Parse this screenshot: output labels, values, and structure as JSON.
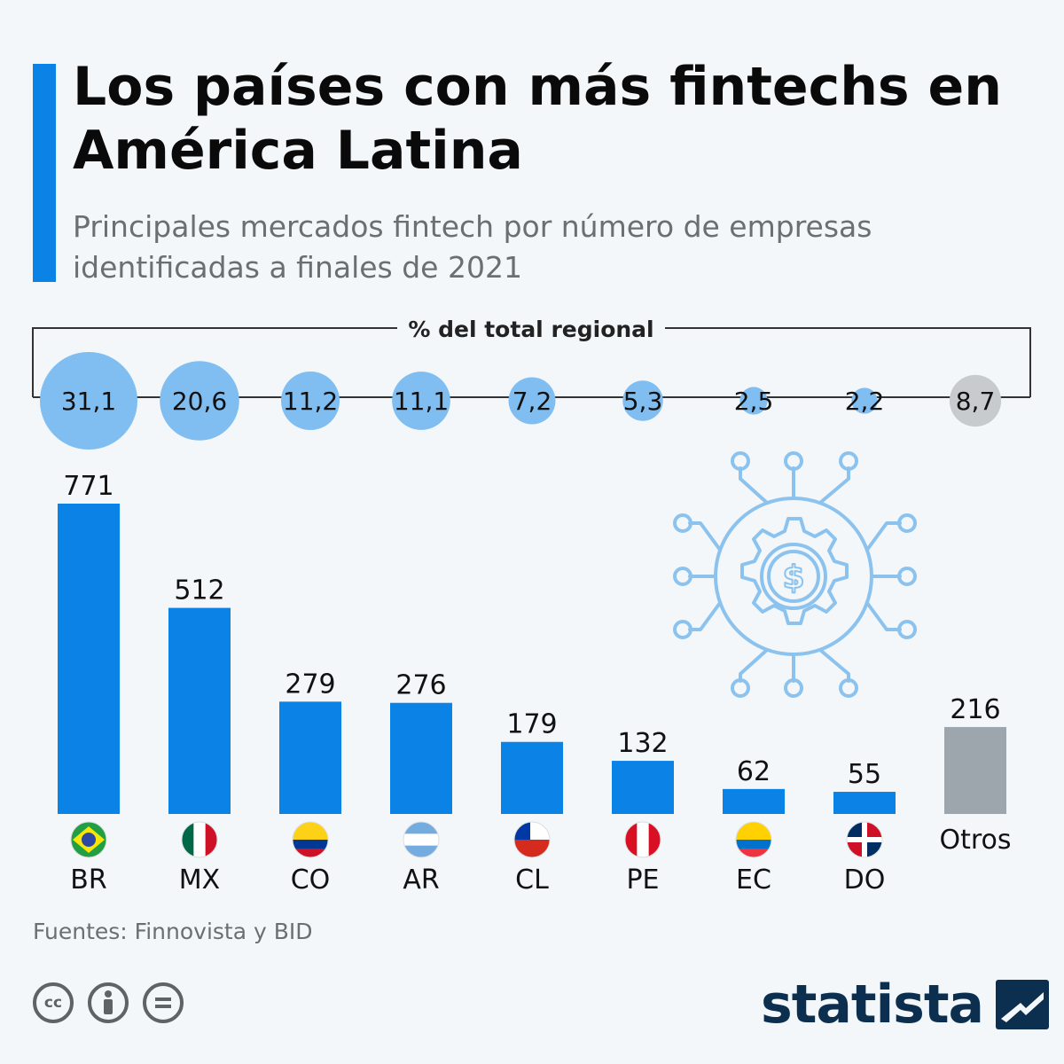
{
  "header": {
    "title": "Los países con más fintechs en América Latina",
    "subtitle": "Principales mercados fintech por número de empresas identificadas a finales de 2021"
  },
  "chart_data": {
    "type": "bar",
    "title": "Los países con más fintechs en América Latina",
    "subtitle": "Principales mercados fintech por número de empresas identificadas a finales de 2021",
    "categories": [
      "BR",
      "MX",
      "CO",
      "AR",
      "CL",
      "PE",
      "EC",
      "DO",
      "Otros"
    ],
    "values": [
      771,
      512,
      279,
      276,
      179,
      132,
      62,
      55,
      216
    ],
    "value_labels": [
      "771",
      "512",
      "279",
      "276",
      "179",
      "132",
      "62",
      "55",
      "216"
    ],
    "percent_of_regional_total": [
      31.1,
      20.6,
      11.2,
      11.1,
      7.2,
      5.3,
      2.5,
      2.2,
      8.7
    ],
    "percent_labels": [
      "31,1",
      "20,6",
      "11,2",
      "11,1",
      "7,2",
      "5,3",
      "2,5",
      "2,2",
      "8,7"
    ],
    "percent_header": "% del total regional",
    "xlabel": "",
    "ylabel": "",
    "ylim": [
      0,
      771
    ],
    "grid": false,
    "colors": {
      "country_bar": "#0b82e6",
      "other_bar": "#9ea6ad",
      "country_bubble": "#80bdf0",
      "other_bubble": "#c7cbce",
      "accent": "#0b82e6"
    }
  },
  "footer": {
    "source": "Fuentes: Finnovista y BID",
    "brand": "statista",
    "license_icons": [
      "cc-icon",
      "attribution-icon",
      "no-derivatives-icon"
    ]
  },
  "illustration": {
    "icon": "fintech-gear-dollar-icon"
  }
}
